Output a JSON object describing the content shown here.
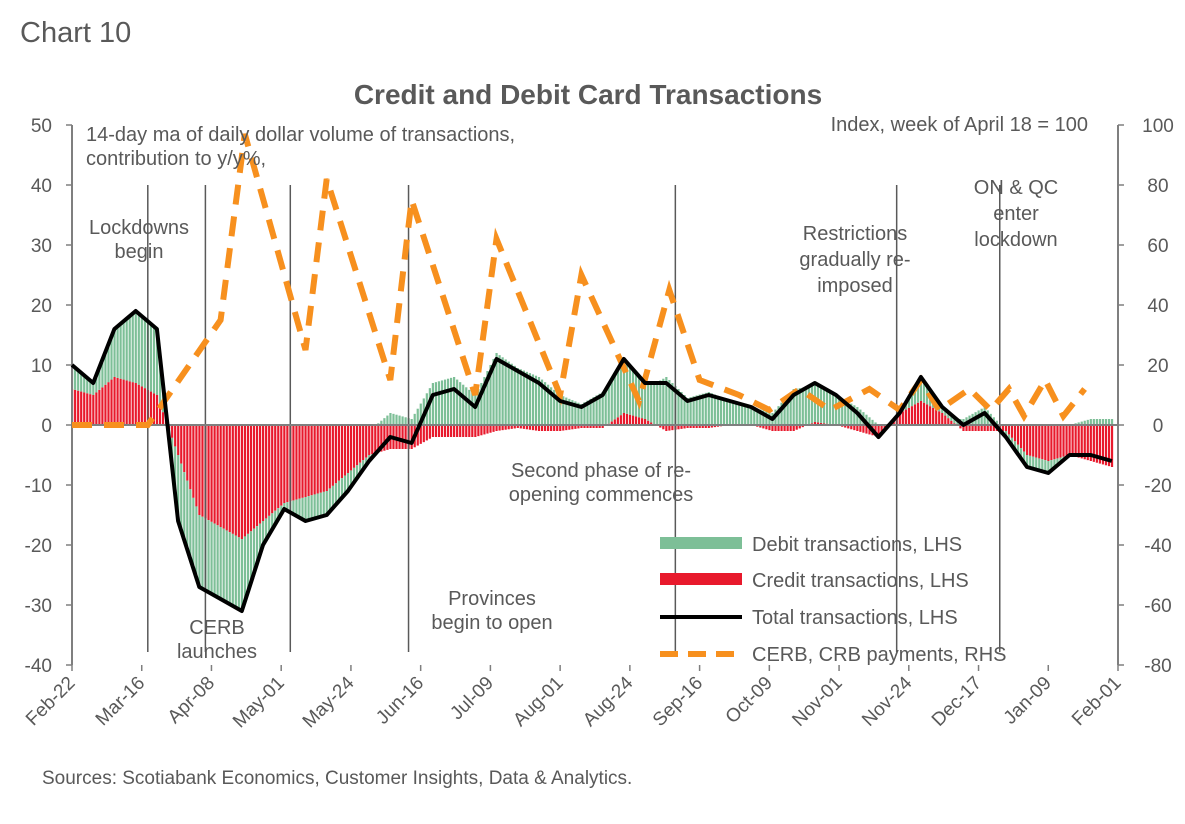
{
  "chart_label": "Chart 10",
  "chart_data": {
    "type": "bar+line",
    "title": "Credit and Debit Card Transactions",
    "left_axis_note": [
      "14-day ma of daily dollar volume of transactions,",
      "contribution to y/y%,"
    ],
    "right_axis_note": "Index, week of April 18 = 100",
    "ylim_left": [
      -40,
      50
    ],
    "ylim_right": [
      -80,
      100
    ],
    "yticks_left": [
      50,
      40,
      30,
      20,
      10,
      0,
      -10,
      -20,
      -30,
      -40
    ],
    "yticks_right": [
      100,
      80,
      60,
      40,
      20,
      0,
      -20,
      -40,
      -60,
      -80
    ],
    "xtick_labels": [
      "Feb-22",
      "Mar-16",
      "Apr-08",
      "May-01",
      "May-24",
      "Jun-16",
      "Jul-09",
      "Aug-01",
      "Aug-24",
      "Sep-16",
      "Oct-09",
      "Nov-01",
      "Nov-24",
      "Dec-17",
      "Jan-09",
      "Feb-01"
    ],
    "x_unit": "days since Feb-22",
    "x_range_days": [
      0,
      345
    ],
    "weekly_step_days": 7,
    "total": [
      10,
      7,
      16,
      19,
      16,
      -16,
      -27,
      -29,
      -31,
      -20,
      -14,
      -16,
      -15,
      -11,
      -6,
      -2,
      -3,
      5,
      6,
      3,
      11,
      9,
      7,
      4,
      3,
      5,
      11,
      7,
      7,
      4,
      5,
      4,
      3,
      1,
      5,
      7,
      5,
      2,
      -2,
      2,
      8,
      3,
      0,
      2,
      -2,
      -7,
      -8,
      -5,
      -5,
      -6
    ],
    "credit": [
      6,
      5,
      8,
      7,
      5,
      -5,
      -15,
      -17,
      -19,
      -16,
      -13,
      -12,
      -11,
      -8,
      -5,
      -4,
      -4,
      -2,
      -2,
      -2,
      -1,
      -0.5,
      -1,
      -1,
      -0.5,
      -0.5,
      2,
      1,
      -1,
      -0.5,
      -0.5,
      0,
      0,
      -1,
      -1,
      0.5,
      0,
      -1,
      -2,
      2,
      4,
      2,
      -1,
      -1,
      -1,
      -5,
      -6,
      -5,
      -6,
      -7
    ],
    "cerb": [
      [
        0,
        0
      ],
      [
        25,
        0
      ],
      [
        49,
        35
      ],
      [
        57,
        97
      ],
      [
        77,
        25
      ],
      [
        84,
        82
      ],
      [
        105,
        15
      ],
      [
        112,
        75
      ],
      [
        133,
        10
      ],
      [
        140,
        62
      ],
      [
        161,
        10
      ],
      [
        168,
        50
      ],
      [
        187,
        8
      ],
      [
        197,
        45
      ],
      [
        207,
        15
      ],
      [
        220,
        10
      ],
      [
        230,
        5
      ],
      [
        240,
        12
      ],
      [
        250,
        5
      ],
      [
        263,
        12
      ],
      [
        273,
        5
      ],
      [
        280,
        15
      ],
      [
        286,
        5
      ],
      [
        296,
        12
      ],
      [
        303,
        5
      ],
      [
        309,
        12
      ],
      [
        314,
        3
      ],
      [
        321,
        15
      ],
      [
        327,
        3
      ],
      [
        334,
        12
      ]
    ],
    "event_lines_days": [
      25,
      44,
      72,
      111,
      199,
      272,
      306
    ],
    "annotations": [
      {
        "lines": [
          "Lockdowns",
          "begin"
        ]
      },
      {
        "lines": [
          "CERB",
          "launches"
        ]
      },
      {
        "lines": [
          "Provinces",
          "begin to open"
        ]
      },
      {
        "lines": [
          "Second phase of re-",
          "opening commences"
        ]
      },
      {
        "lines": [
          "Restrictions",
          "gradually re-",
          "imposed"
        ]
      },
      {
        "lines": [
          "ON & QC",
          "enter",
          "lockdown"
        ]
      }
    ],
    "legend": [
      {
        "label": "Debit transactions, LHS",
        "color": "#7dbf97"
      },
      {
        "label": "Credit transactions, LHS",
        "color": "#e8192c"
      },
      {
        "label": "Total transactions, LHS",
        "color": "#000000"
      },
      {
        "label": "CERB, CRB payments, RHS",
        "color": "#f7901e"
      }
    ],
    "legend_position": "bottom-right",
    "source": "Sources: Scotiabank Economics, Customer Insights, Data & Analytics."
  }
}
